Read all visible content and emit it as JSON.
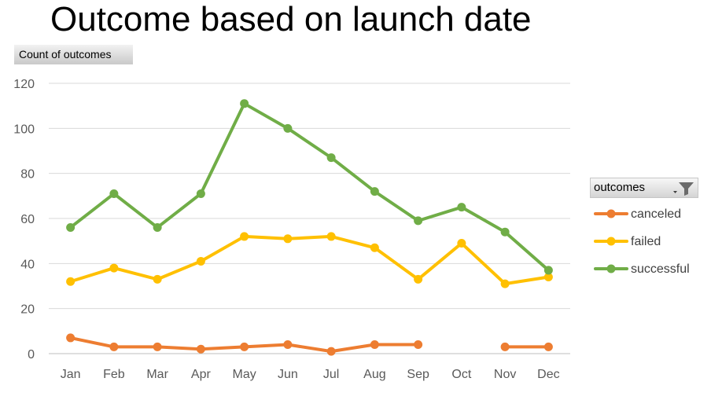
{
  "title": "Outcome based on launch date",
  "value_field": "Count of outcomes",
  "legend": {
    "header": "outcomes",
    "icons": [
      "dropdown-arrow-icon",
      "filter-icon"
    ]
  },
  "chart_data": {
    "type": "line",
    "title": "Outcome based on launch date",
    "xlabel": "",
    "ylabel": "Count of outcomes",
    "categories": [
      "Jan",
      "Feb",
      "Mar",
      "Apr",
      "May",
      "Jun",
      "Jul",
      "Aug",
      "Sep",
      "Oct",
      "Nov",
      "Dec"
    ],
    "ylim": [
      0,
      120
    ],
    "yticks": [
      0,
      20,
      40,
      60,
      80,
      100,
      120
    ],
    "grid": true,
    "legend_position": "right",
    "series": [
      {
        "name": "canceled",
        "color": "#ED7D31",
        "values": [
          7,
          3,
          3,
          2,
          3,
          4,
          1,
          4,
          4,
          null,
          3,
          3
        ]
      },
      {
        "name": "failed",
        "color": "#FFC000",
        "values": [
          32,
          38,
          33,
          41,
          52,
          51,
          52,
          47,
          33,
          49,
          31,
          34
        ]
      },
      {
        "name": "successful",
        "color": "#70AD47",
        "values": [
          56,
          71,
          56,
          71,
          111,
          100,
          87,
          72,
          59,
          65,
          54,
          37
        ]
      }
    ]
  }
}
